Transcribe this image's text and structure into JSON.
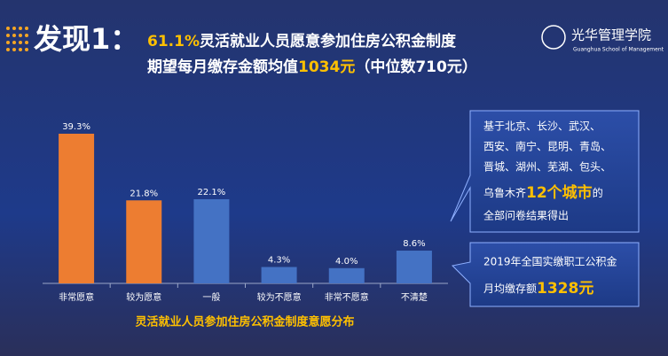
{
  "header": {
    "title": "发现1：",
    "line1": [
      "61.1%",
      "灵活就业人员愿意参加住房公积金制度"
    ],
    "line2": [
      "期望每月缴存金额均值",
      "1034元",
      "（中位数710元）"
    ]
  },
  "logo": {
    "name": "光华管理学院",
    "subtitle": "Guanghua School of Management"
  },
  "chart_data": {
    "type": "bar",
    "title": "灵活就业人员参加住房公积金制度意愿分布",
    "categories": [
      "非常愿意",
      "较为愿意",
      "一般",
      "较为不愿意",
      "非常不愿意",
      "不清楚"
    ],
    "values": [
      39.3,
      21.8,
      22.1,
      4.3,
      4.0,
      8.6
    ],
    "value_labels": [
      "39.3%",
      "21.8%",
      "22.1%",
      "4.3%",
      "4.0%",
      "8.6%"
    ],
    "colors": [
      "#ed7d31",
      "#ed7d31",
      "#4472c4",
      "#4472c4",
      "#4472c4",
      "#4472c4"
    ]
  },
  "callouts": [
    {
      "lines": [
        [
          "基于北京、长沙、武汉、"
        ],
        [
          "西安、南宁、昆明、青岛、"
        ],
        [
          "晋城、湖州、芜湖、包头、"
        ],
        [
          "乌鲁木齐",
          "12个城市",
          "的"
        ],
        [
          "全部问卷结果得出"
        ]
      ]
    },
    {
      "lines": [
        [
          "2019年全国实缴职工公积金"
        ],
        [
          "月均缴存额",
          "1328元"
        ]
      ]
    }
  ]
}
